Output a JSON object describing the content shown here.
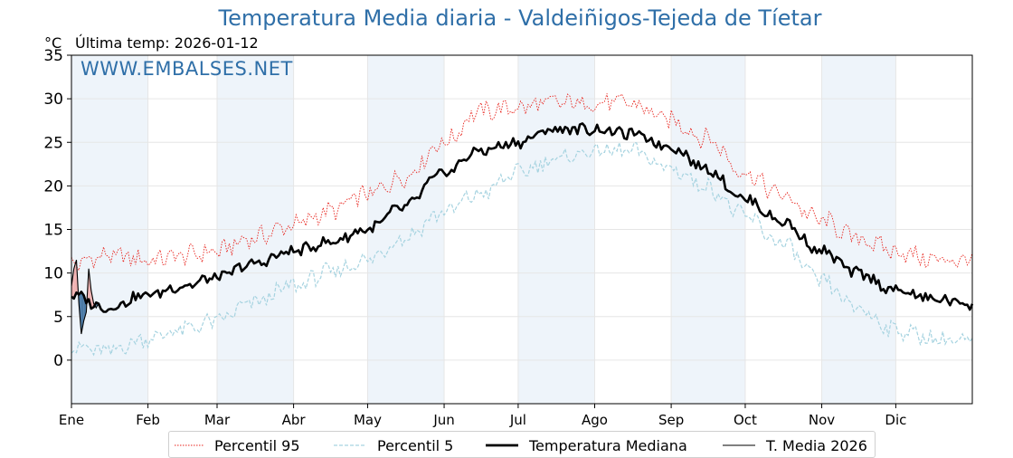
{
  "title": "Temperatura Media diaria - Valdeiñigos-Tejeda de Tíetar",
  "unit_label": "°C",
  "last_temp_label": "Última temp:",
  "last_temp_date": "2026-01-12",
  "watermark": "WWW.EMBALSES.NET",
  "colors": {
    "title": "#2f6fa8",
    "p95": "#e8231c",
    "p5": "#a6d3e0",
    "median": "#000000",
    "year": "#000000",
    "above_fill": "#f1b3b3",
    "below_fill": "#4a7aa6",
    "band": "#eef4fa"
  },
  "chart_data": {
    "type": "line",
    "title": "Temperatura Media diaria - Valdeiñigos-Tejeda de Tíetar",
    "ylabel": "°C",
    "ylim": [
      -5,
      35
    ],
    "yticks": [
      0,
      5,
      10,
      15,
      20,
      25,
      30,
      35
    ],
    "xlim": [
      1,
      366
    ],
    "month_labels": [
      "Ene",
      "Feb",
      "Mar",
      "Abr",
      "May",
      "Jun",
      "Jul",
      "Ago",
      "Sep",
      "Oct",
      "Nov",
      "Dic"
    ],
    "month_start_days": [
      1,
      32,
      60,
      91,
      121,
      152,
      182,
      213,
      244,
      274,
      305,
      335
    ],
    "grid": true,
    "legend_position": "bottom-center",
    "series": [
      {
        "name": "Percentil 95",
        "style": "dotted-red",
        "x": [
          1,
          15,
          32,
          46,
          60,
          74,
          91,
          105,
          121,
          135,
          152,
          166,
          182,
          196,
          213,
          227,
          244,
          258,
          274,
          288,
          305,
          319,
          335,
          350,
          366
        ],
        "values": [
          11,
          12,
          11.5,
          12,
          12.5,
          14,
          15.5,
          17,
          19,
          21,
          25,
          28.5,
          29,
          29.5,
          29.5,
          29.5,
          27.5,
          25.5,
          21.5,
          19,
          16,
          14,
          12.5,
          11.5,
          11.5
        ]
      },
      {
        "name": "Percentil 5",
        "style": "dashed-lightblue",
        "x": [
          1,
          15,
          32,
          46,
          60,
          74,
          91,
          105,
          121,
          135,
          152,
          166,
          182,
          196,
          213,
          227,
          244,
          258,
          274,
          288,
          305,
          319,
          335,
          350,
          366
        ],
        "values": [
          1.5,
          1,
          2.5,
          3.5,
          4.5,
          6.5,
          8.5,
          10,
          11.5,
          14,
          17,
          19,
          21.5,
          23,
          24,
          24,
          22,
          20,
          16.5,
          13.5,
          9,
          6,
          3.5,
          2.5,
          2
        ]
      },
      {
        "name": "Temperatura Mediana",
        "style": "thick-black",
        "x": [
          1,
          15,
          32,
          46,
          60,
          74,
          91,
          105,
          121,
          135,
          152,
          166,
          182,
          196,
          213,
          227,
          244,
          258,
          274,
          288,
          305,
          319,
          335,
          350,
          366
        ],
        "values": [
          7.5,
          6,
          7.5,
          8.5,
          9.5,
          11,
          12.5,
          13.5,
          15,
          17.5,
          21.5,
          24,
          25,
          26.5,
          26.5,
          26,
          24.5,
          22,
          18.5,
          16,
          12.5,
          10,
          8,
          7,
          6.5
        ]
      },
      {
        "name": "T. Media 2026",
        "style": "thin-black",
        "x": [
          1,
          2,
          3,
          4,
          5,
          6,
          7,
          8,
          9,
          10,
          11,
          12
        ],
        "values": [
          8.5,
          10.5,
          11.5,
          6.5,
          3,
          4.5,
          5.5,
          10.5,
          8,
          6.5,
          6,
          6.5
        ]
      }
    ]
  },
  "legend": {
    "p95": "Percentil 95",
    "p5": "Percentil 5",
    "median": "Temperatura Mediana",
    "year": "T. Media 2026"
  }
}
